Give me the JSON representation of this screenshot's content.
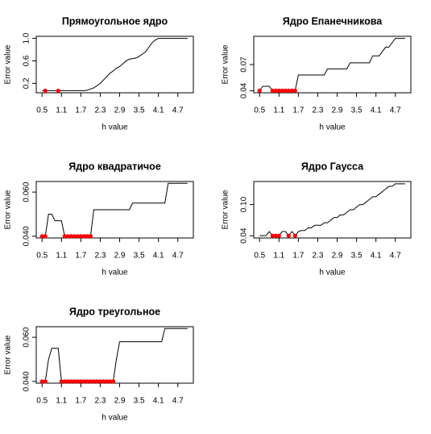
{
  "chart_data": [
    {
      "type": "line",
      "title": "Прямоугольное ядро",
      "xlabel": "h value",
      "ylabel": "Error value",
      "x": [
        0.5,
        0.6,
        0.7,
        0.8,
        0.9,
        1.0,
        1.1,
        1.2,
        1.3,
        1.4,
        1.5,
        1.6,
        1.7,
        1.8,
        1.9,
        2.0,
        2.1,
        2.2,
        2.3,
        2.4,
        2.5,
        2.6,
        2.7,
        2.8,
        2.9,
        3.0,
        3.1,
        3.2,
        3.3,
        3.4,
        3.5,
        3.6,
        3.7,
        3.8,
        3.9,
        4.0,
        4.1,
        4.2,
        4.3,
        4.4,
        4.5,
        4.6,
        4.7,
        4.8,
        4.9,
        5.0
      ],
      "series": [
        {
          "color": "#000000",
          "values": [
            0.07,
            0.07,
            0.07,
            0.07,
            0.07,
            0.07,
            0.07,
            0.07,
            0.07,
            0.07,
            0.07,
            0.07,
            0.07,
            0.07,
            0.08,
            0.1,
            0.12,
            0.16,
            0.2,
            0.26,
            0.32,
            0.38,
            0.42,
            0.47,
            0.5,
            0.55,
            0.6,
            0.63,
            0.64,
            0.65,
            0.68,
            0.72,
            0.76,
            0.84,
            0.92,
            0.97,
            1.0,
            1.0,
            1.0,
            1.0,
            1.0,
            1.0,
            1.0,
            1.0,
            1.0,
            1.0
          ]
        }
      ],
      "points": {
        "color": "#ff0000",
        "x": [
          0.6,
          1.0
        ],
        "values": [
          0.07,
          0.07
        ]
      },
      "xlim": [
        0.32,
        5.18
      ],
      "xticks": [
        0.5,
        1.1,
        1.7,
        2.3,
        2.9,
        3.5,
        4.1,
        4.7
      ],
      "ylim": [
        0.033,
        1.037
      ],
      "yticks": [
        0.2,
        0.6,
        {
          "value": 1,
          "label": "1.0"
        }
      ]
    },
    {
      "type": "line",
      "title": "Ядро Епанечникова",
      "xlabel": "h value",
      "ylabel": "Error value",
      "x": [
        0.5,
        0.6,
        0.7,
        0.8,
        0.9,
        1.0,
        1.1,
        1.2,
        1.3,
        1.4,
        1.5,
        1.6,
        1.7,
        1.8,
        1.9,
        2.0,
        2.1,
        2.2,
        2.3,
        2.4,
        2.5,
        2.6,
        2.7,
        2.8,
        2.9,
        3.0,
        3.1,
        3.2,
        3.3,
        3.4,
        3.5,
        3.6,
        3.7,
        3.8,
        3.9,
        4.0,
        4.1,
        4.2,
        4.3,
        4.4,
        4.5,
        4.6,
        4.7,
        4.8,
        4.9,
        5.0
      ],
      "series": [
        {
          "color": "#000000",
          "values": [
            0.04,
            0.045,
            0.045,
            0.045,
            0.04,
            0.04,
            0.04,
            0.04,
            0.04,
            0.04,
            0.04,
            0.04,
            0.058,
            0.058,
            0.058,
            0.058,
            0.058,
            0.058,
            0.058,
            0.058,
            0.058,
            0.065,
            0.065,
            0.065,
            0.065,
            0.065,
            0.065,
            0.065,
            0.072,
            0.072,
            0.072,
            0.072,
            0.072,
            0.072,
            0.072,
            0.08,
            0.08,
            0.08,
            0.085,
            0.09,
            0.09,
            0.095,
            0.1,
            0.1,
            0.1,
            0.1
          ]
        }
      ],
      "points": {
        "color": "#ff0000",
        "x": [
          0.5,
          0.9,
          1.0,
          1.1,
          1.2,
          1.3,
          1.4,
          1.5,
          1.6
        ],
        "values": [
          0.04,
          0.04,
          0.04,
          0.04,
          0.04,
          0.04,
          0.04,
          0.04,
          0.04
        ]
      },
      "xlim": [
        0.32,
        5.18
      ],
      "xticks": [
        0.5,
        1.1,
        1.7,
        2.3,
        2.9,
        3.5,
        4.1,
        4.7
      ],
      "ylim": [
        0.0376,
        0.1024
      ],
      "yticks": [
        0.04,
        0.07
      ]
    },
    {
      "type": "line",
      "title": "Ядро квадратичое",
      "xlabel": "h value",
      "ylabel": "Error value",
      "x": [
        0.5,
        0.6,
        0.7,
        0.8,
        0.9,
        1.0,
        1.1,
        1.2,
        1.3,
        1.4,
        1.5,
        1.6,
        1.7,
        1.8,
        1.9,
        2.0,
        2.1,
        2.2,
        2.3,
        2.4,
        2.5,
        2.6,
        2.7,
        2.8,
        2.9,
        3.0,
        3.1,
        3.2,
        3.3,
        3.4,
        3.5,
        3.6,
        3.7,
        3.8,
        3.9,
        4.0,
        4.1,
        4.2,
        4.3,
        4.4,
        4.5,
        4.6,
        4.7,
        4.8,
        4.9,
        5.0
      ],
      "series": [
        {
          "color": "#000000",
          "values": [
            0.04,
            0.04,
            0.05,
            0.05,
            0.047,
            0.047,
            0.047,
            0.04,
            0.04,
            0.04,
            0.04,
            0.04,
            0.04,
            0.04,
            0.04,
            0.04,
            0.052,
            0.052,
            0.052,
            0.052,
            0.052,
            0.052,
            0.052,
            0.052,
            0.052,
            0.052,
            0.052,
            0.052,
            0.055,
            0.055,
            0.055,
            0.055,
            0.055,
            0.055,
            0.055,
            0.055,
            0.055,
            0.055,
            0.055,
            0.064,
            0.064,
            0.064,
            0.064,
            0.064,
            0.064,
            0.064
          ]
        }
      ],
      "points": {
        "color": "#ff0000",
        "x": [
          0.5,
          0.6,
          1.2,
          1.3,
          1.4,
          1.5,
          1.6,
          1.7,
          1.8,
          1.9,
          2.0
        ],
        "values": [
          0.04,
          0.04,
          0.04,
          0.04,
          0.04,
          0.04,
          0.04,
          0.04,
          0.04,
          0.04,
          0.04
        ]
      },
      "xlim": [
        0.32,
        5.18
      ],
      "xticks": [
        0.5,
        1.1,
        1.7,
        2.3,
        2.9,
        3.5,
        4.1,
        4.7
      ],
      "ylim": [
        0.0392,
        0.0648
      ],
      "yticks": [
        {
          "value": 0.04,
          "label": "0.040"
        },
        {
          "value": 0.06,
          "label": "0.060"
        }
      ]
    },
    {
      "type": "line",
      "title": "Ядро Гаусса",
      "xlabel": "h value",
      "ylabel": "Error value",
      "x": [
        0.5,
        0.6,
        0.7,
        0.8,
        0.9,
        1.0,
        1.1,
        1.2,
        1.3,
        1.4,
        1.5,
        1.6,
        1.7,
        1.8,
        1.9,
        2.0,
        2.1,
        2.2,
        2.3,
        2.4,
        2.5,
        2.6,
        2.7,
        2.8,
        2.9,
        3.0,
        3.1,
        3.2,
        3.3,
        3.4,
        3.5,
        3.6,
        3.7,
        3.8,
        3.9,
        4.0,
        4.1,
        4.2,
        4.3,
        4.4,
        4.5,
        4.6,
        4.7,
        4.8,
        4.9,
        5.0
      ],
      "series": [
        {
          "color": "#000000",
          "values": [
            0.04,
            0.04,
            0.04,
            0.048,
            0.04,
            0.04,
            0.04,
            0.048,
            0.048,
            0.04,
            0.048,
            0.04,
            0.048,
            0.05,
            0.05,
            0.055,
            0.055,
            0.06,
            0.06,
            0.06,
            0.065,
            0.065,
            0.07,
            0.075,
            0.075,
            0.08,
            0.08,
            0.085,
            0.09,
            0.09,
            0.095,
            0.1,
            0.1,
            0.105,
            0.11,
            0.115,
            0.115,
            0.12,
            0.125,
            0.13,
            0.135,
            0.135,
            0.14,
            0.14,
            0.14,
            0.14
          ]
        }
      ],
      "points": {
        "color": "#ff0000",
        "x": [
          0.9,
          1.0,
          1.1,
          1.4,
          1.6
        ],
        "values": [
          0.04,
          0.04,
          0.04,
          0.04,
          0.04
        ]
      },
      "xlim": [
        0.32,
        5.18
      ],
      "xticks": [
        0.5,
        1.1,
        1.7,
        2.3,
        2.9,
        3.5,
        4.1,
        4.7
      ],
      "ylim": [
        0.0356,
        0.1444
      ],
      "yticks": [
        0.04,
        {
          "value": 0.1,
          "label": "0.10"
        }
      ]
    },
    {
      "type": "line",
      "title": "Ядро треугольное",
      "xlabel": "h value",
      "ylabel": "Error value",
      "x": [
        0.5,
        0.6,
        0.7,
        0.8,
        0.9,
        1.0,
        1.1,
        1.2,
        1.3,
        1.4,
        1.5,
        1.6,
        1.7,
        1.8,
        1.9,
        2.0,
        2.1,
        2.2,
        2.3,
        2.4,
        2.5,
        2.6,
        2.7,
        2.8,
        2.9,
        3.0,
        3.1,
        3.2,
        3.3,
        3.4,
        3.5,
        3.6,
        3.7,
        3.8,
        3.9,
        4.0,
        4.1,
        4.2,
        4.3,
        4.4,
        4.5,
        4.6,
        4.7,
        4.8,
        4.9,
        5.0
      ],
      "series": [
        {
          "color": "#000000",
          "values": [
            0.04,
            0.04,
            0.05,
            0.055,
            0.055,
            0.055,
            0.04,
            0.04,
            0.04,
            0.04,
            0.04,
            0.04,
            0.04,
            0.04,
            0.04,
            0.04,
            0.04,
            0.04,
            0.04,
            0.04,
            0.04,
            0.04,
            0.04,
            0.05,
            0.058,
            0.058,
            0.058,
            0.058,
            0.058,
            0.058,
            0.058,
            0.058,
            0.058,
            0.058,
            0.058,
            0.058,
            0.058,
            0.058,
            0.064,
            0.064,
            0.064,
            0.064,
            0.064,
            0.064,
            0.064,
            0.064
          ]
        }
      ],
      "points": {
        "color": "#ff0000",
        "x": [
          0.5,
          0.6,
          1.1,
          1.2,
          1.3,
          1.4,
          1.5,
          1.6,
          1.7,
          1.8,
          1.9,
          2.0,
          2.1,
          2.2,
          2.3,
          2.4,
          2.5,
          2.6,
          2.7
        ],
        "values": [
          0.04,
          0.04,
          0.04,
          0.04,
          0.04,
          0.04,
          0.04,
          0.04,
          0.04,
          0.04,
          0.04,
          0.04,
          0.04,
          0.04,
          0.04,
          0.04,
          0.04,
          0.04,
          0.04
        ]
      },
      "xlim": [
        0.32,
        5.18
      ],
      "xticks": [
        0.5,
        1.1,
        1.7,
        2.3,
        2.9,
        3.5,
        4.1,
        4.7
      ],
      "ylim": [
        0.0392,
        0.0648
      ],
      "yticks": [
        {
          "value": 0.04,
          "label": "0.040"
        },
        {
          "value": 0.06,
          "label": "0.060"
        }
      ]
    }
  ]
}
